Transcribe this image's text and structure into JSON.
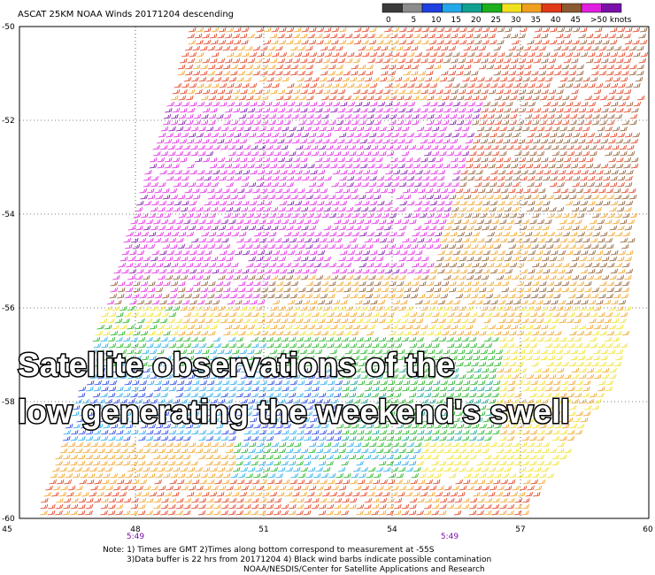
{
  "header": {
    "title": "ASCAT 25KM NOAA Winds 20171204 descending"
  },
  "legend": {
    "labels": [
      "0",
      "5",
      "10",
      "15",
      "20",
      "25",
      "30",
      "35",
      "40",
      "45",
      ">50 knots"
    ],
    "colors": [
      "#3a3a3a",
      "#8c8c8c",
      "#1f3fe0",
      "#22a8e8",
      "#10a090",
      "#1cb01c",
      "#f0e020",
      "#f0a020",
      "#e03a18",
      "#8c5a30",
      "#e020e0",
      "#7a10a8"
    ]
  },
  "map": {
    "lat_labels": [
      "-50",
      "-52",
      "-54",
      "-56",
      "-58",
      "-60"
    ],
    "lon_labels": [
      "45",
      "48",
      "51",
      "54",
      "57",
      "60"
    ],
    "time_labels": [
      "5:49",
      "5:49"
    ]
  },
  "notes": [
    "Note: 1) Times are GMT 2)Times along bottom correspond to measurement at -55S",
    "3)Data buffer is 22 hrs from 20171204 4) Black wind barbs indicate possible contamination",
    "NOAA/NESDIS/Center for Satellite Applications and Research"
  ],
  "overlay": [
    "Satellite observations of the",
    "low generating the weekend's swell"
  ]
}
